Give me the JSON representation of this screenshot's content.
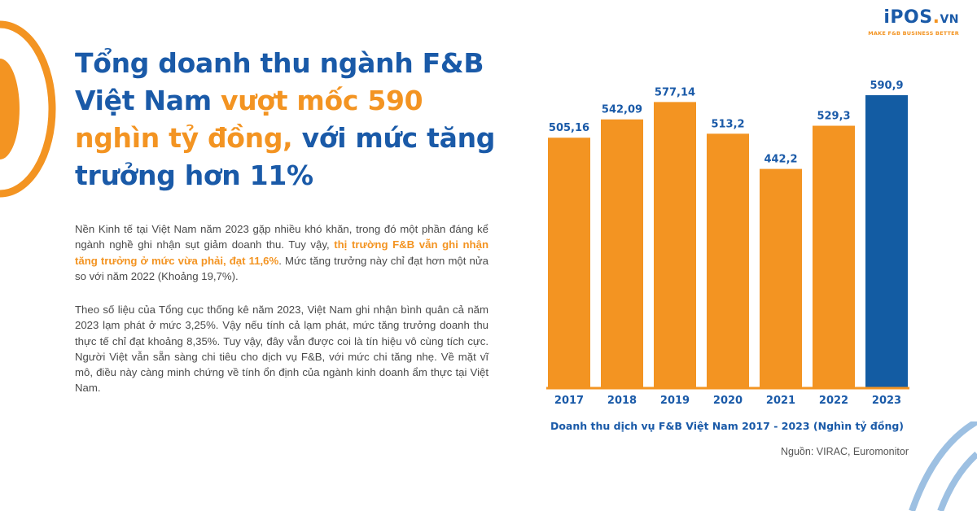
{
  "logo": {
    "brand": "iPOS",
    "dot": ".",
    "suffix": "VN",
    "tagline": "MAKE F&B BUSINESS BETTER"
  },
  "headline": {
    "part1": "Tổng doanh thu ngành F&B Việt Nam ",
    "highlight": "vượt mốc 590 nghìn tỷ đồng,",
    "part2": " với mức tăng trưởng hơn 11%"
  },
  "paragraph1": {
    "part1": "Nền Kinh tế tại Việt Nam năm 2023 gặp nhiều khó khăn, trong đó một phần đáng kể ngành nghề ghi nhận sụt giảm doanh thu. Tuy vậy, ",
    "highlight": "thị trường F&B vẫn ghi nhận tăng trưởng ở mức vừa phải, đạt 11,6%",
    "part2": ". Mức tăng trưởng này chỉ đạt hơn một nửa so với năm 2022 (Khoảng 19,7%)."
  },
  "paragraph2": "Theo số liệu của Tổng cục thống kê năm 2023, Việt Nam ghi nhận bình quân cả năm 2023 lạm phát ở mức 3,25%. Vậy nếu tính cả lạm phát, mức tăng trưởng doanh thu thực tế chỉ đạt khoảng 8,35%. Tuy vậy, đây vẫn được coi là tín hiệu vô cùng tích cực. Người Việt vẫn sẵn sàng chi tiêu cho dịch vụ F&B, với mức chi tăng nhẹ. Về mặt vĩ mô, điều này càng minh chứng về tính ổn định của ngành kinh doanh ẩm thực tại Việt Nam.",
  "chart_data": {
    "type": "bar",
    "title": "Doanh thu dịch vụ F&B Việt Nam 2017 - 2023 (Nghìn tỷ đồng)",
    "categories": [
      "2017",
      "2018",
      "2019",
      "2020",
      "2021",
      "2022",
      "2023"
    ],
    "values": [
      505.16,
      542.09,
      577.14,
      513.2,
      442.2,
      529.3,
      590.9
    ],
    "value_labels": [
      "505,16",
      "542,09",
      "577,14",
      "513,2",
      "442,2",
      "529,3",
      "590,9"
    ],
    "ylim": [
      0,
      590.9
    ],
    "highlight_index": 6,
    "xlabel": "",
    "ylabel": "",
    "legend": "none",
    "grid": false,
    "colors": {
      "bar": "#f39422",
      "highlight": "#135ca3",
      "label": "#1a5aa8",
      "axis": "#f39422"
    }
  },
  "source": "Nguồn: VIRAC, Euromonitor"
}
